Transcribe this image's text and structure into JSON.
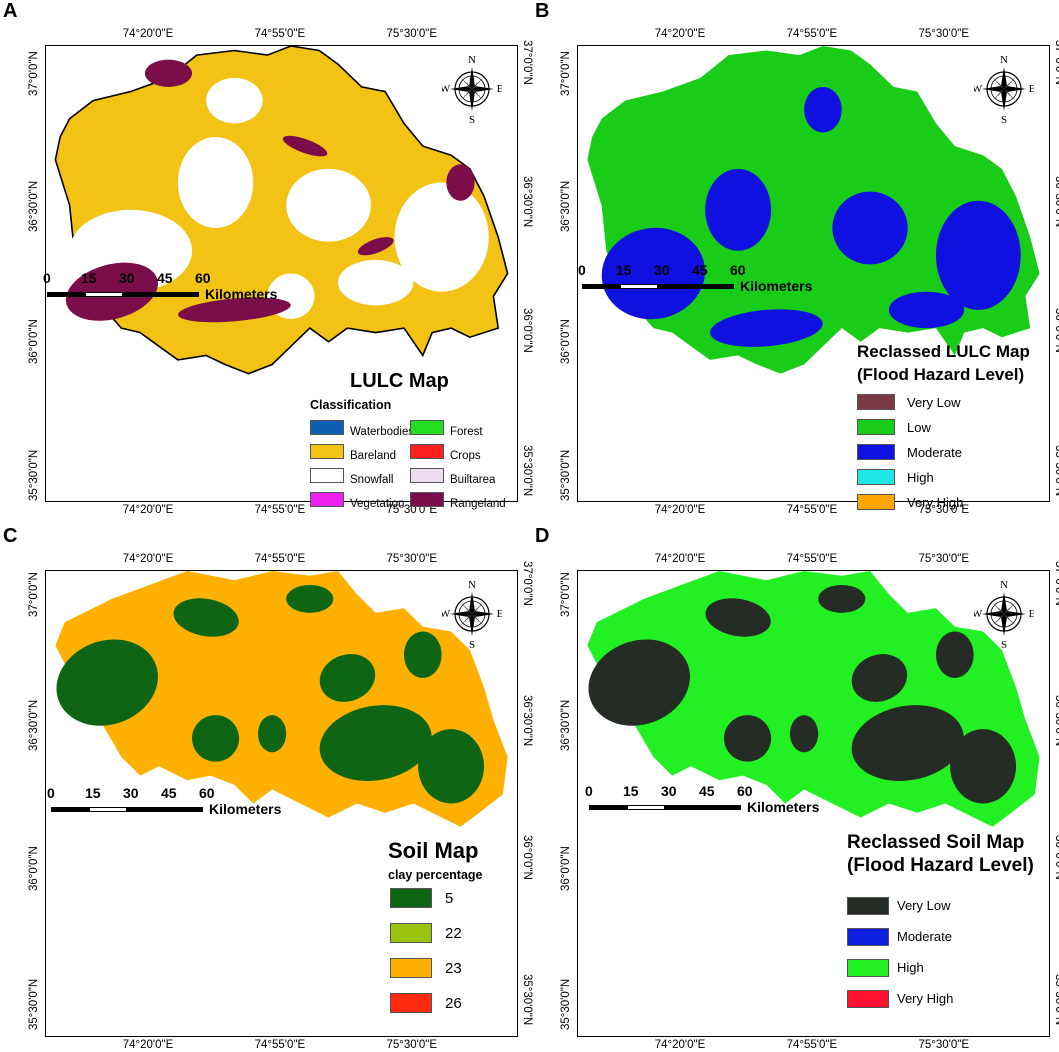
{
  "axis_ticks": {
    "lon": [
      "74°20'0\"E",
      "74°55'0\"E",
      "75°30'0\"E"
    ],
    "lat": [
      "37°0'0\"N",
      "36°30'0\"N",
      "36°0'0\"N",
      "35°30'0\"N"
    ]
  },
  "compass": {
    "n": "N",
    "s": "S",
    "e": "E",
    "w": "W"
  },
  "scale_bar": {
    "numbers": [
      "0",
      "15",
      "30",
      "45",
      "60"
    ],
    "unit": "Kilometers"
  },
  "panels": [
    {
      "letter": "A",
      "legend_title": "LULC Map",
      "legend_subtitle": "Classification",
      "classes": [
        {
          "label": "Waterbodies",
          "color": "#0d5fb0"
        },
        {
          "label": "Bareland",
          "color": "#f2c314"
        },
        {
          "label": "Snowfall",
          "color": "#ffffff"
        },
        {
          "label": "Vegetation",
          "color": "#ee22ee"
        },
        {
          "label": "Forest",
          "color": "#22dd22"
        },
        {
          "label": "Crops",
          "color": "#ff2020"
        },
        {
          "label": "Builtarea",
          "color": "#ecdcf0"
        },
        {
          "label": "Rangeland",
          "color": "#7a0d4a"
        }
      ]
    },
    {
      "letter": "B",
      "legend_title": "Reclassed LULC Map (Flood Hazard Level)",
      "legend_title_lines": [
        "Reclassed LULC Map",
        "(Flood Hazard Level)"
      ],
      "classes": [
        {
          "label": "Very Low",
          "color": "#7a3a45"
        },
        {
          "label": "Low",
          "color": "#18cc18"
        },
        {
          "label": "Moderate",
          "color": "#1010e0"
        },
        {
          "label": "High",
          "color": "#22e6e6"
        },
        {
          "label": "Very High",
          "color": "#ffa500"
        }
      ]
    },
    {
      "letter": "C",
      "legend_title": "Soil Map",
      "legend_subtitle": "clay percentage",
      "classes": [
        {
          "label": "5",
          "color": "#0e6614"
        },
        {
          "label": "22",
          "color": "#9ac20e"
        },
        {
          "label": "23",
          "color": "#ffb000"
        },
        {
          "label": "26",
          "color": "#ff2a10"
        }
      ]
    },
    {
      "letter": "D",
      "legend_title": "Reclassed Soil Map (Flood Hazard Level)",
      "legend_title_lines": [
        "Reclassed Soil Map",
        "(Flood Hazard Level)"
      ],
      "classes": [
        {
          "label": "Very Low",
          "color": "#252c25"
        },
        {
          "label": "Moderate",
          "color": "#1020e0"
        },
        {
          "label": "High",
          "color": "#22f022"
        },
        {
          "label": "Very High",
          "color": "#ff1030"
        }
      ]
    }
  ]
}
